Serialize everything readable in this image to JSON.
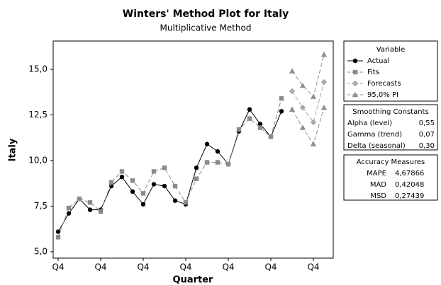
{
  "chart_data": {
    "type": "line",
    "title": "Winters' Method Plot for Italy",
    "subtitle": "Multiplicative Method",
    "x_label": "Quarter",
    "y_label": "Italy",
    "categories": [
      "Q4",
      null,
      null,
      null,
      "Q4",
      null,
      null,
      null,
      "Q4",
      null,
      null,
      null,
      "Q4",
      null,
      null,
      null,
      "Q4",
      null,
      null,
      null,
      "Q4",
      null,
      null,
      null,
      "Q4",
      null
    ],
    "ylim": [
      4.65,
      16.55
    ],
    "yticks": [
      {
        "value": 5,
        "label": "5,0"
      },
      {
        "value": 7.5,
        "label": "7,5"
      },
      {
        "value": 10,
        "label": "10,0"
      },
      {
        "value": 12.5,
        "label": "12,5"
      },
      {
        "value": 15,
        "label": "15,0"
      }
    ],
    "legend_title": "Variable",
    "series": [
      {
        "name": "Actual",
        "color": "#000000",
        "marker": "circle",
        "dash": false,
        "values": [
          6.1,
          7.1,
          7.9,
          7.3,
          7.3,
          8.6,
          9.1,
          8.3,
          7.6,
          8.7,
          8.6,
          7.8,
          7.6,
          9.6,
          10.9,
          10.5,
          9.8,
          11.6,
          12.8,
          12.0,
          11.3,
          12.7,
          null,
          null,
          null,
          null
        ]
      },
      {
        "name": "Fits",
        "color": "#8a8a8a",
        "marker": "square",
        "dash": true,
        "values": [
          5.8,
          7.4,
          7.9,
          7.7,
          7.2,
          8.8,
          9.4,
          8.9,
          8.2,
          9.4,
          9.6,
          8.6,
          7.7,
          9.0,
          9.9,
          9.9,
          9.8,
          11.7,
          12.3,
          11.8,
          11.3,
          13.4,
          null,
          null,
          null,
          null
        ]
      },
      {
        "name": "Forecasts",
        "color": "#a8a8a8",
        "marker": "diamond",
        "dash": true,
        "values": [
          null,
          null,
          null,
          null,
          null,
          null,
          null,
          null,
          null,
          null,
          null,
          null,
          null,
          null,
          null,
          null,
          null,
          null,
          null,
          null,
          null,
          null,
          13.8,
          12.9,
          12.1,
          14.3
        ]
      },
      {
        "name": "95,0% PI",
        "color": "#909090",
        "marker": "triangle",
        "dash": true,
        "upper": [
          null,
          null,
          null,
          null,
          null,
          null,
          null,
          null,
          null,
          null,
          null,
          null,
          null,
          null,
          null,
          null,
          null,
          null,
          null,
          null,
          null,
          null,
          14.9,
          14.1,
          13.5,
          15.8
        ],
        "lower": [
          null,
          null,
          null,
          null,
          null,
          null,
          null,
          null,
          null,
          null,
          null,
          null,
          null,
          null,
          null,
          null,
          null,
          null,
          null,
          null,
          null,
          null,
          12.8,
          11.8,
          10.9,
          12.9
        ]
      }
    ],
    "smoothing_constants": {
      "title": "Smoothing Constants",
      "rows": [
        [
          "Alpha (level)",
          "0,55"
        ],
        [
          "Gamma (trend)",
          "0,07"
        ],
        [
          "Delta (seasonal)",
          "0,30"
        ]
      ]
    },
    "accuracy_measures": {
      "title": "Accuracy Measures",
      "rows": [
        [
          "MAPE",
          "4,67866"
        ],
        [
          "MAD",
          "0,42048"
        ],
        [
          "MSD",
          "0,27439"
        ]
      ]
    }
  }
}
